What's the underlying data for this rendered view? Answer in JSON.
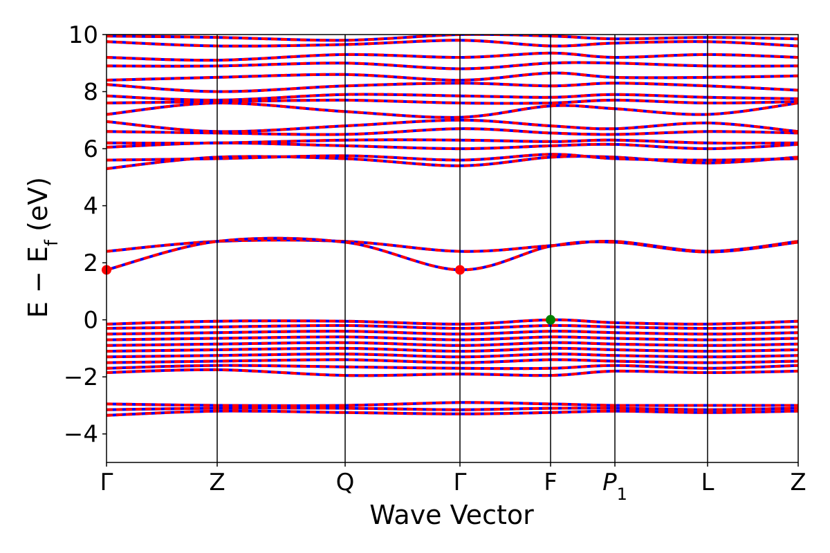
{
  "chart_data": {
    "type": "line",
    "xlabel": "Wave Vector",
    "ylabel": "E − E",
    "ylabel_sub": "f",
    "ylabel_unit": " (eV)",
    "ylim": [
      -5,
      10
    ],
    "yticks": [
      -4,
      -2,
      0,
      2,
      4,
      6,
      8,
      10
    ],
    "ytick_labels": [
      "−4",
      "−2",
      "0",
      "2",
      "4",
      "6",
      "8",
      "10"
    ],
    "kpath": [
      {
        "label": "Γ",
        "k": 0.0
      },
      {
        "label": "Z",
        "k": 0.16
      },
      {
        "label": "Q",
        "k": 0.345
      },
      {
        "label": "Γ",
        "k": 0.511
      },
      {
        "label": "F",
        "k": 0.642
      },
      {
        "label": "P",
        "sub": "1",
        "k": 0.735
      },
      {
        "label": "L",
        "k": 0.869
      },
      {
        "label": "Z",
        "k": 1.0
      }
    ],
    "colors": {
      "spin_up": "#ff0000",
      "spin_down": "#0000ff",
      "vbm": "#008000",
      "cbm": "#ff0000"
    },
    "series": [
      {
        "points": [
          [
            0,
            2.4
          ],
          [
            0.16,
            2.75
          ],
          [
            0.345,
            2.75
          ],
          [
            0.511,
            2.4
          ],
          [
            0.642,
            2.6
          ],
          [
            0.735,
            2.75
          ],
          [
            0.869,
            2.4
          ],
          [
            1.0,
            2.75
          ]
        ]
      },
      {
        "points": [
          [
            0,
            1.75
          ],
          [
            0.16,
            2.75
          ],
          [
            0.345,
            2.72
          ],
          [
            0.511,
            1.75
          ],
          [
            0.642,
            2.58
          ],
          [
            0.735,
            2.72
          ],
          [
            0.869,
            2.38
          ],
          [
            1.0,
            2.72
          ]
        ]
      },
      {
        "points": [
          [
            0,
            5.3
          ],
          [
            0.16,
            5.7
          ],
          [
            0.345,
            5.65
          ],
          [
            0.511,
            5.4
          ],
          [
            0.642,
            5.7
          ],
          [
            0.735,
            5.7
          ],
          [
            0.869,
            5.5
          ],
          [
            1.0,
            5.7
          ]
        ]
      },
      {
        "points": [
          [
            0,
            5.6
          ],
          [
            0.16,
            5.65
          ],
          [
            0.345,
            5.75
          ],
          [
            0.511,
            5.6
          ],
          [
            0.642,
            5.8
          ],
          [
            0.735,
            5.65
          ],
          [
            0.869,
            5.6
          ],
          [
            1.0,
            5.65
          ]
        ]
      },
      {
        "points": [
          [
            0,
            6.05
          ],
          [
            0.16,
            6.2
          ],
          [
            0.345,
            6.1
          ],
          [
            0.511,
            6.0
          ],
          [
            0.642,
            6.1
          ],
          [
            0.735,
            6.15
          ],
          [
            0.869,
            6.0
          ],
          [
            1.0,
            6.15
          ]
        ]
      },
      {
        "points": [
          [
            0,
            6.2
          ],
          [
            0.16,
            6.2
          ],
          [
            0.345,
            6.3
          ],
          [
            0.511,
            6.3
          ],
          [
            0.642,
            6.25
          ],
          [
            0.735,
            6.3
          ],
          [
            0.869,
            6.2
          ],
          [
            1.0,
            6.2
          ]
        ]
      },
      {
        "points": [
          [
            0,
            6.6
          ],
          [
            0.16,
            6.55
          ],
          [
            0.345,
            6.5
          ],
          [
            0.511,
            6.7
          ],
          [
            0.642,
            6.55
          ],
          [
            0.735,
            6.5
          ],
          [
            0.869,
            6.6
          ],
          [
            1.0,
            6.55
          ]
        ]
      },
      {
        "points": [
          [
            0,
            6.95
          ],
          [
            0.16,
            6.6
          ],
          [
            0.345,
            6.8
          ],
          [
            0.511,
            7.0
          ],
          [
            0.642,
            6.8
          ],
          [
            0.735,
            6.7
          ],
          [
            0.869,
            6.9
          ],
          [
            1.0,
            6.6
          ]
        ]
      },
      {
        "points": [
          [
            0,
            7.2
          ],
          [
            0.16,
            7.6
          ],
          [
            0.345,
            7.3
          ],
          [
            0.511,
            7.1
          ],
          [
            0.642,
            7.5
          ],
          [
            0.735,
            7.4
          ],
          [
            0.869,
            7.2
          ],
          [
            1.0,
            7.6
          ]
        ]
      },
      {
        "points": [
          [
            0,
            7.6
          ],
          [
            0.16,
            7.65
          ],
          [
            0.345,
            7.7
          ],
          [
            0.511,
            7.6
          ],
          [
            0.642,
            7.6
          ],
          [
            0.735,
            7.7
          ],
          [
            0.869,
            7.6
          ],
          [
            1.0,
            7.65
          ]
        ]
      },
      {
        "points": [
          [
            0,
            7.85
          ],
          [
            0.16,
            7.7
          ],
          [
            0.345,
            7.9
          ],
          [
            0.511,
            7.85
          ],
          [
            0.642,
            7.8
          ],
          [
            0.735,
            7.9
          ],
          [
            0.869,
            7.8
          ],
          [
            1.0,
            7.75
          ]
        ]
      },
      {
        "points": [
          [
            0,
            8.25
          ],
          [
            0.16,
            8.0
          ],
          [
            0.345,
            8.2
          ],
          [
            0.511,
            8.3
          ],
          [
            0.642,
            8.2
          ],
          [
            0.735,
            8.3
          ],
          [
            0.869,
            8.2
          ],
          [
            1.0,
            8.05
          ]
        ]
      },
      {
        "points": [
          [
            0,
            8.4
          ],
          [
            0.16,
            8.5
          ],
          [
            0.345,
            8.6
          ],
          [
            0.511,
            8.4
          ],
          [
            0.642,
            8.65
          ],
          [
            0.735,
            8.5
          ],
          [
            0.869,
            8.5
          ],
          [
            1.0,
            8.55
          ]
        ]
      },
      {
        "points": [
          [
            0,
            8.9
          ],
          [
            0.16,
            8.9
          ],
          [
            0.345,
            9.0
          ],
          [
            0.511,
            8.8
          ],
          [
            0.642,
            9.0
          ],
          [
            0.735,
            9.0
          ],
          [
            0.869,
            8.9
          ],
          [
            1.0,
            8.9
          ]
        ]
      },
      {
        "points": [
          [
            0,
            9.2
          ],
          [
            0.16,
            9.1
          ],
          [
            0.345,
            9.3
          ],
          [
            0.511,
            9.2
          ],
          [
            0.642,
            9.35
          ],
          [
            0.735,
            9.2
          ],
          [
            0.869,
            9.3
          ],
          [
            1.0,
            9.2
          ]
        ]
      },
      {
        "points": [
          [
            0,
            9.75
          ],
          [
            0.16,
            9.6
          ],
          [
            0.345,
            9.65
          ],
          [
            0.511,
            9.8
          ],
          [
            0.642,
            9.6
          ],
          [
            0.735,
            9.7
          ],
          [
            0.869,
            9.75
          ],
          [
            1.0,
            9.6
          ]
        ]
      },
      {
        "points": [
          [
            0,
            9.95
          ],
          [
            0.16,
            9.9
          ],
          [
            0.345,
            9.8
          ],
          [
            0.511,
            10.0
          ],
          [
            0.642,
            9.95
          ],
          [
            0.735,
            9.85
          ],
          [
            0.869,
            9.9
          ],
          [
            1.0,
            9.85
          ]
        ]
      },
      {
        "points": [
          [
            0,
            -0.15
          ],
          [
            0.16,
            -0.05
          ],
          [
            0.345,
            -0.05
          ],
          [
            0.511,
            -0.15
          ],
          [
            0.642,
            0.0
          ],
          [
            0.735,
            -0.1
          ],
          [
            0.869,
            -0.15
          ],
          [
            1.0,
            -0.05
          ]
        ]
      },
      {
        "points": [
          [
            0,
            -0.3
          ],
          [
            0.16,
            -0.25
          ],
          [
            0.345,
            -0.2
          ],
          [
            0.511,
            -0.3
          ],
          [
            0.642,
            -0.2
          ],
          [
            0.735,
            -0.25
          ],
          [
            0.869,
            -0.3
          ],
          [
            1.0,
            -0.25
          ]
        ]
      },
      {
        "points": [
          [
            0,
            -0.5
          ],
          [
            0.16,
            -0.45
          ],
          [
            0.345,
            -0.4
          ],
          [
            0.511,
            -0.5
          ],
          [
            0.642,
            -0.4
          ],
          [
            0.735,
            -0.45
          ],
          [
            0.869,
            -0.5
          ],
          [
            1.0,
            -0.45
          ]
        ]
      },
      {
        "points": [
          [
            0,
            -0.7
          ],
          [
            0.16,
            -0.65
          ],
          [
            0.345,
            -0.6
          ],
          [
            0.511,
            -0.7
          ],
          [
            0.642,
            -0.6
          ],
          [
            0.735,
            -0.65
          ],
          [
            0.869,
            -0.7
          ],
          [
            1.0,
            -0.65
          ]
        ]
      },
      {
        "points": [
          [
            0,
            -0.9
          ],
          [
            0.16,
            -0.85
          ],
          [
            0.345,
            -0.8
          ],
          [
            0.511,
            -0.9
          ],
          [
            0.642,
            -0.8
          ],
          [
            0.735,
            -0.85
          ],
          [
            0.869,
            -0.9
          ],
          [
            1.0,
            -0.85
          ]
        ]
      },
      {
        "points": [
          [
            0,
            -1.1
          ],
          [
            0.16,
            -1.05
          ],
          [
            0.345,
            -1.0
          ],
          [
            0.511,
            -1.1
          ],
          [
            0.642,
            -1.0
          ],
          [
            0.735,
            -1.05
          ],
          [
            0.869,
            -1.1
          ],
          [
            1.0,
            -1.05
          ]
        ]
      },
      {
        "points": [
          [
            0,
            -1.3
          ],
          [
            0.16,
            -1.25
          ],
          [
            0.345,
            -1.2
          ],
          [
            0.511,
            -1.3
          ],
          [
            0.642,
            -1.2
          ],
          [
            0.735,
            -1.25
          ],
          [
            0.869,
            -1.3
          ],
          [
            1.0,
            -1.25
          ]
        ]
      },
      {
        "points": [
          [
            0,
            -1.5
          ],
          [
            0.16,
            -1.45
          ],
          [
            0.345,
            -1.4
          ],
          [
            0.511,
            -1.5
          ],
          [
            0.642,
            -1.4
          ],
          [
            0.735,
            -1.45
          ],
          [
            0.869,
            -1.5
          ],
          [
            1.0,
            -1.45
          ]
        ]
      },
      {
        "points": [
          [
            0,
            -1.7
          ],
          [
            0.16,
            -1.6
          ],
          [
            0.345,
            -1.65
          ],
          [
            0.511,
            -1.7
          ],
          [
            0.642,
            -1.7
          ],
          [
            0.735,
            -1.6
          ],
          [
            0.869,
            -1.7
          ],
          [
            1.0,
            -1.6
          ]
        ]
      },
      {
        "points": [
          [
            0,
            -1.85
          ],
          [
            0.16,
            -1.75
          ],
          [
            0.345,
            -1.95
          ],
          [
            0.511,
            -1.9
          ],
          [
            0.642,
            -1.95
          ],
          [
            0.735,
            -1.8
          ],
          [
            0.869,
            -1.85
          ],
          [
            1.0,
            -1.8
          ]
        ]
      },
      {
        "points": [
          [
            0,
            -2.95
          ],
          [
            0.16,
            -3.0
          ],
          [
            0.345,
            -3.0
          ],
          [
            0.511,
            -2.9
          ],
          [
            0.642,
            -2.95
          ],
          [
            0.735,
            -3.0
          ],
          [
            0.869,
            -3.0
          ],
          [
            1.0,
            -3.0
          ]
        ]
      },
      {
        "points": [
          [
            0,
            -3.15
          ],
          [
            0.16,
            -3.1
          ],
          [
            0.345,
            -3.1
          ],
          [
            0.511,
            -3.15
          ],
          [
            0.642,
            -3.1
          ],
          [
            0.735,
            -3.1
          ],
          [
            0.869,
            -3.15
          ],
          [
            1.0,
            -3.1
          ]
        ]
      },
      {
        "points": [
          [
            0,
            -3.35
          ],
          [
            0.16,
            -3.2
          ],
          [
            0.345,
            -3.25
          ],
          [
            0.511,
            -3.3
          ],
          [
            0.642,
            -3.25
          ],
          [
            0.735,
            -3.2
          ],
          [
            0.869,
            -3.25
          ],
          [
            1.0,
            -3.2
          ]
        ]
      }
    ],
    "markers": [
      {
        "kind": "cbm",
        "k": 0.0,
        "e": 1.75
      },
      {
        "kind": "cbm",
        "k": 0.511,
        "e": 1.75
      },
      {
        "kind": "vbm",
        "k": 0.642,
        "e": 0.0
      }
    ]
  }
}
